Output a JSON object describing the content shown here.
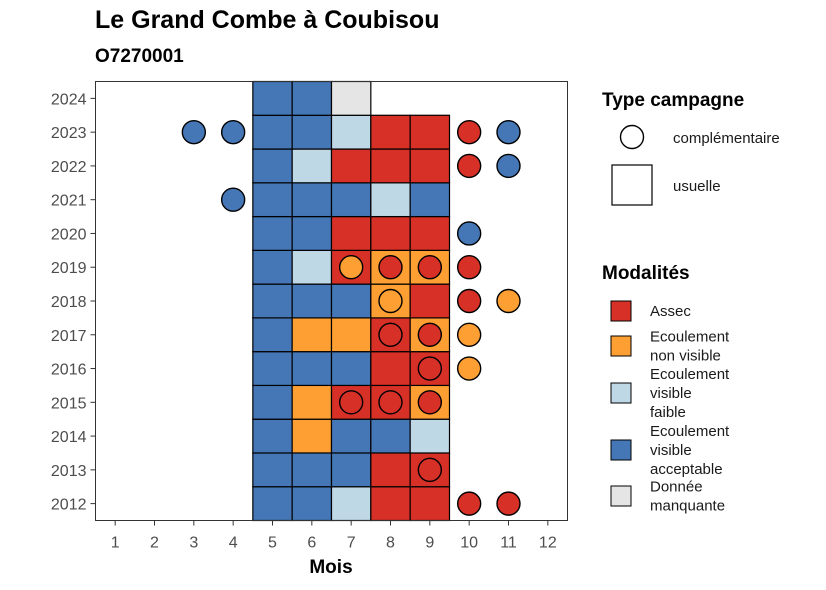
{
  "title": "Le Grand Combe à Coubisou",
  "subtitle": "O7270001",
  "chart_data": {
    "type": "heatmap",
    "xlabel": "Mois",
    "ylabel": "",
    "x_ticks": [
      "1",
      "2",
      "3",
      "4",
      "5",
      "6",
      "7",
      "8",
      "9",
      "10",
      "11",
      "12"
    ],
    "y_ticks": [
      "2012",
      "2013",
      "2014",
      "2015",
      "2016",
      "2017",
      "2018",
      "2019",
      "2020",
      "2021",
      "2022",
      "2023",
      "2024"
    ],
    "colors": {
      "Assec": "#d73027",
      "Ecoulement non visible": "#fe9f33",
      "Ecoulement visible faible": "#bfd8e5",
      "Ecoulement visible acceptable": "#4577b7",
      "Donnée manquante": "#e5e5e5"
    },
    "tiles_usuelle": [
      {
        "year": 2012,
        "month": 5,
        "category": "Ecoulement visible acceptable"
      },
      {
        "year": 2012,
        "month": 6,
        "category": "Ecoulement visible acceptable"
      },
      {
        "year": 2012,
        "month": 7,
        "category": "Ecoulement visible faible"
      },
      {
        "year": 2012,
        "month": 8,
        "category": "Assec"
      },
      {
        "year": 2012,
        "month": 9,
        "category": "Assec"
      },
      {
        "year": 2013,
        "month": 5,
        "category": "Ecoulement visible acceptable"
      },
      {
        "year": 2013,
        "month": 6,
        "category": "Ecoulement visible acceptable"
      },
      {
        "year": 2013,
        "month": 7,
        "category": "Ecoulement visible acceptable"
      },
      {
        "year": 2013,
        "month": 8,
        "category": "Assec"
      },
      {
        "year": 2013,
        "month": 9,
        "category": "Assec"
      },
      {
        "year": 2014,
        "month": 5,
        "category": "Ecoulement visible acceptable"
      },
      {
        "year": 2014,
        "month": 6,
        "category": "Ecoulement non visible"
      },
      {
        "year": 2014,
        "month": 7,
        "category": "Ecoulement visible acceptable"
      },
      {
        "year": 2014,
        "month": 8,
        "category": "Ecoulement visible acceptable"
      },
      {
        "year": 2014,
        "month": 9,
        "category": "Ecoulement visible faible"
      },
      {
        "year": 2015,
        "month": 5,
        "category": "Ecoulement visible acceptable"
      },
      {
        "year": 2015,
        "month": 6,
        "category": "Ecoulement non visible"
      },
      {
        "year": 2015,
        "month": 7,
        "category": "Assec"
      },
      {
        "year": 2015,
        "month": 8,
        "category": "Assec"
      },
      {
        "year": 2015,
        "month": 9,
        "category": "Ecoulement non visible"
      },
      {
        "year": 2016,
        "month": 5,
        "category": "Ecoulement visible acceptable"
      },
      {
        "year": 2016,
        "month": 6,
        "category": "Ecoulement visible acceptable"
      },
      {
        "year": 2016,
        "month": 7,
        "category": "Ecoulement visible acceptable"
      },
      {
        "year": 2016,
        "month": 8,
        "category": "Assec"
      },
      {
        "year": 2016,
        "month": 9,
        "category": "Assec"
      },
      {
        "year": 2017,
        "month": 5,
        "category": "Ecoulement visible acceptable"
      },
      {
        "year": 2017,
        "month": 6,
        "category": "Ecoulement non visible"
      },
      {
        "year": 2017,
        "month": 7,
        "category": "Ecoulement non visible"
      },
      {
        "year": 2017,
        "month": 8,
        "category": "Assec"
      },
      {
        "year": 2017,
        "month": 9,
        "category": "Ecoulement non visible"
      },
      {
        "year": 2018,
        "month": 5,
        "category": "Ecoulement visible acceptable"
      },
      {
        "year": 2018,
        "month": 6,
        "category": "Ecoulement visible acceptable"
      },
      {
        "year": 2018,
        "month": 7,
        "category": "Ecoulement visible acceptable"
      },
      {
        "year": 2018,
        "month": 8,
        "category": "Ecoulement non visible"
      },
      {
        "year": 2018,
        "month": 9,
        "category": "Assec"
      },
      {
        "year": 2019,
        "month": 5,
        "category": "Ecoulement visible acceptable"
      },
      {
        "year": 2019,
        "month": 6,
        "category": "Ecoulement visible faible"
      },
      {
        "year": 2019,
        "month": 7,
        "category": "Assec"
      },
      {
        "year": 2019,
        "month": 8,
        "category": "Ecoulement non visible"
      },
      {
        "year": 2019,
        "month": 9,
        "category": "Ecoulement non visible"
      },
      {
        "year": 2020,
        "month": 5,
        "category": "Ecoulement visible acceptable"
      },
      {
        "year": 2020,
        "month": 6,
        "category": "Ecoulement visible acceptable"
      },
      {
        "year": 2020,
        "month": 7,
        "category": "Assec"
      },
      {
        "year": 2020,
        "month": 8,
        "category": "Assec"
      },
      {
        "year": 2020,
        "month": 9,
        "category": "Assec"
      },
      {
        "year": 2021,
        "month": 5,
        "category": "Ecoulement visible acceptable"
      },
      {
        "year": 2021,
        "month": 6,
        "category": "Ecoulement visible acceptable"
      },
      {
        "year": 2021,
        "month": 7,
        "category": "Ecoulement visible acceptable"
      },
      {
        "year": 2021,
        "month": 8,
        "category": "Ecoulement visible faible"
      },
      {
        "year": 2021,
        "month": 9,
        "category": "Ecoulement visible acceptable"
      },
      {
        "year": 2022,
        "month": 5,
        "category": "Ecoulement visible acceptable"
      },
      {
        "year": 2022,
        "month": 6,
        "category": "Ecoulement visible faible"
      },
      {
        "year": 2022,
        "month": 7,
        "category": "Assec"
      },
      {
        "year": 2022,
        "month": 8,
        "category": "Assec"
      },
      {
        "year": 2022,
        "month": 9,
        "category": "Assec"
      },
      {
        "year": 2023,
        "month": 5,
        "category": "Ecoulement visible acceptable"
      },
      {
        "year": 2023,
        "month": 6,
        "category": "Ecoulement visible acceptable"
      },
      {
        "year": 2023,
        "month": 7,
        "category": "Ecoulement visible faible"
      },
      {
        "year": 2023,
        "month": 8,
        "category": "Assec"
      },
      {
        "year": 2023,
        "month": 9,
        "category": "Assec"
      },
      {
        "year": 2024,
        "month": 5,
        "category": "Ecoulement visible acceptable"
      },
      {
        "year": 2024,
        "month": 6,
        "category": "Ecoulement visible acceptable"
      },
      {
        "year": 2024,
        "month": 7,
        "category": "Donnée manquante"
      }
    ],
    "points_complementaire": [
      {
        "year": 2012,
        "month": 10,
        "category": "Assec"
      },
      {
        "year": 2012,
        "month": 11,
        "category": "Assec"
      },
      {
        "year": 2013,
        "month": 9,
        "category": "Assec"
      },
      {
        "year": 2015,
        "month": 7,
        "category": "Assec"
      },
      {
        "year": 2015,
        "month": 8,
        "category": "Assec"
      },
      {
        "year": 2015,
        "month": 9,
        "category": "Assec"
      },
      {
        "year": 2016,
        "month": 9,
        "category": "Assec"
      },
      {
        "year": 2016,
        "month": 10,
        "category": "Ecoulement non visible"
      },
      {
        "year": 2017,
        "month": 8,
        "category": "Assec"
      },
      {
        "year": 2017,
        "month": 9,
        "category": "Assec"
      },
      {
        "year": 2017,
        "month": 10,
        "category": "Ecoulement non visible"
      },
      {
        "year": 2018,
        "month": 8,
        "category": "Ecoulement non visible"
      },
      {
        "year": 2018,
        "month": 10,
        "category": "Assec"
      },
      {
        "year": 2018,
        "month": 11,
        "category": "Ecoulement non visible"
      },
      {
        "year": 2019,
        "month": 7,
        "category": "Ecoulement non visible"
      },
      {
        "year": 2019,
        "month": 8,
        "category": "Assec"
      },
      {
        "year": 2019,
        "month": 9,
        "category": "Assec"
      },
      {
        "year": 2019,
        "month": 10,
        "category": "Assec"
      },
      {
        "year": 2020,
        "month": 10,
        "category": "Ecoulement visible acceptable"
      },
      {
        "year": 2021,
        "month": 4,
        "category": "Ecoulement visible acceptable"
      },
      {
        "year": 2022,
        "month": 10,
        "category": "Assec"
      },
      {
        "year": 2022,
        "month": 11,
        "category": "Ecoulement visible acceptable"
      },
      {
        "year": 2023,
        "month": 3,
        "category": "Ecoulement visible acceptable"
      },
      {
        "year": 2023,
        "month": 4,
        "category": "Ecoulement visible acceptable"
      },
      {
        "year": 2023,
        "month": 10,
        "category": "Assec"
      },
      {
        "year": 2023,
        "month": 11,
        "category": "Ecoulement visible acceptable"
      }
    ],
    "xlim": [
      0.5,
      12.5
    ],
    "ylim": [
      2011.5,
      2024.5
    ],
    "grid": false,
    "legend_placement": "right"
  },
  "legend": {
    "campagne_title": "Type campagne",
    "campagne_items": [
      "complémentaire",
      "usuelle"
    ],
    "modalites_title": "Modalités",
    "modalites_items": [
      {
        "label_lines": [
          "Assec"
        ],
        "category": "Assec"
      },
      {
        "label_lines": [
          "Ecoulement",
          "non visible"
        ],
        "category": "Ecoulement non visible"
      },
      {
        "label_lines": [
          "Ecoulement",
          "visible",
          "faible"
        ],
        "category": "Ecoulement visible faible"
      },
      {
        "label_lines": [
          "Ecoulement",
          "visible",
          "acceptable"
        ],
        "category": "Ecoulement visible acceptable"
      },
      {
        "label_lines": [
          "Donnée",
          "manquante"
        ],
        "category": "Donnée manquante"
      }
    ]
  }
}
